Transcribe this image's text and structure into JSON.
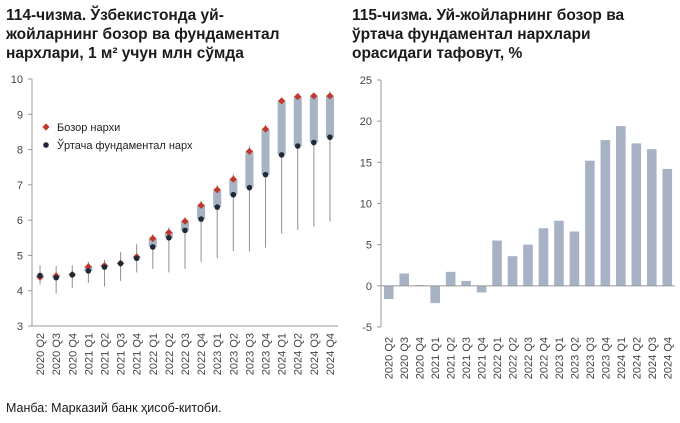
{
  "titles": {
    "left": [
      "114-чизма. Ўзбекистонда уй-",
      "жойларнинг бозор ва фундаментал",
      "нархлари, 1 м² учун млн сўмда"
    ],
    "right": [
      "115-чизма. Уй-жойларнинг бозор ва",
      "ўртача фундаментал нархлари",
      "орасидаги тафовут, %"
    ]
  },
  "source": "Манба: Марказий банк ҳисоб-китоби.",
  "colors": {
    "range_bar": "#a7b2c5",
    "whisker": "#8f8f8f",
    "market": "#c0392b",
    "fundamental": "#1f2a36",
    "gap_bar": "#a7b2c5",
    "axis": "#999999"
  },
  "chart_data": [
    {
      "type": "range",
      "categories": [
        "2020 Q2",
        "2020 Q3",
        "2020 Q4",
        "2021 Q1",
        "2021 Q2",
        "2021 Q3",
        "2021 Q4",
        "2022 Q1",
        "2022 Q2",
        "2022 Q3",
        "2022 Q4",
        "2023 Q1",
        "2023 Q2",
        "2023 Q3",
        "2023 Q4",
        "2024 Q1",
        "2024 Q2",
        "2024 Q3",
        "2024 Q4"
      ],
      "ylim": [
        3,
        10
      ],
      "yticks": [
        3,
        4,
        5,
        6,
        7,
        8,
        9,
        10
      ],
      "grid": false,
      "legend_position": "top-left",
      "series": [
        {
          "name": "Бозор нархи",
          "values": [
            4.38,
            4.42,
            4.46,
            4.68,
            4.71,
            4.78,
            4.96,
            5.48,
            5.65,
            5.97,
            6.42,
            6.86,
            7.16,
            7.95,
            8.58,
            9.38,
            9.5,
            9.52,
            9.52
          ]
        },
        {
          "name": "Ўртача фундаментал нарх",
          "values": [
            4.43,
            4.37,
            4.45,
            4.56,
            4.67,
            4.77,
            4.92,
            5.24,
            5.5,
            5.71,
            6.03,
            6.37,
            6.72,
            6.92,
            7.29,
            7.85,
            8.1,
            8.2,
            8.35
          ]
        }
      ],
      "whisker_low": [
        4.18,
        3.92,
        4.08,
        4.22,
        4.12,
        4.28,
        4.52,
        4.62,
        4.52,
        4.62,
        4.82,
        4.92,
        5.12,
        5.12,
        5.22,
        5.62,
        5.72,
        5.82,
        5.96
      ],
      "whisker_high": [
        4.72,
        4.7,
        4.72,
        4.82,
        4.88,
        5.1,
        5.32,
        5.6,
        5.8,
        6.08,
        6.55,
        7.0,
        7.3,
        8.1,
        8.7,
        9.45,
        9.6,
        9.62,
        9.65
      ]
    },
    {
      "type": "bar",
      "categories": [
        "2020 Q2",
        "2020 Q3",
        "2020 Q4",
        "2021 Q1",
        "2021 Q2",
        "2021 Q3",
        "2021 Q4",
        "2022 Q1",
        "2022 Q2",
        "2022 Q3",
        "2022 Q4",
        "2023 Q1",
        "2023 Q2",
        "2023 Q3",
        "2023 Q4",
        "2024 Q1",
        "2024 Q2",
        "2024 Q3",
        "2024 Q4"
      ],
      "values": [
        -1.6,
        1.5,
        0.1,
        -2.1,
        1.7,
        0.6,
        -0.8,
        5.5,
        3.6,
        5.0,
        7.0,
        7.9,
        6.6,
        15.2,
        17.7,
        19.4,
        17.3,
        16.6,
        14.2
      ],
      "ylim": [
        -5,
        25
      ],
      "yticks": [
        -5,
        0,
        5,
        10,
        15,
        20,
        25
      ],
      "grid": false
    }
  ]
}
